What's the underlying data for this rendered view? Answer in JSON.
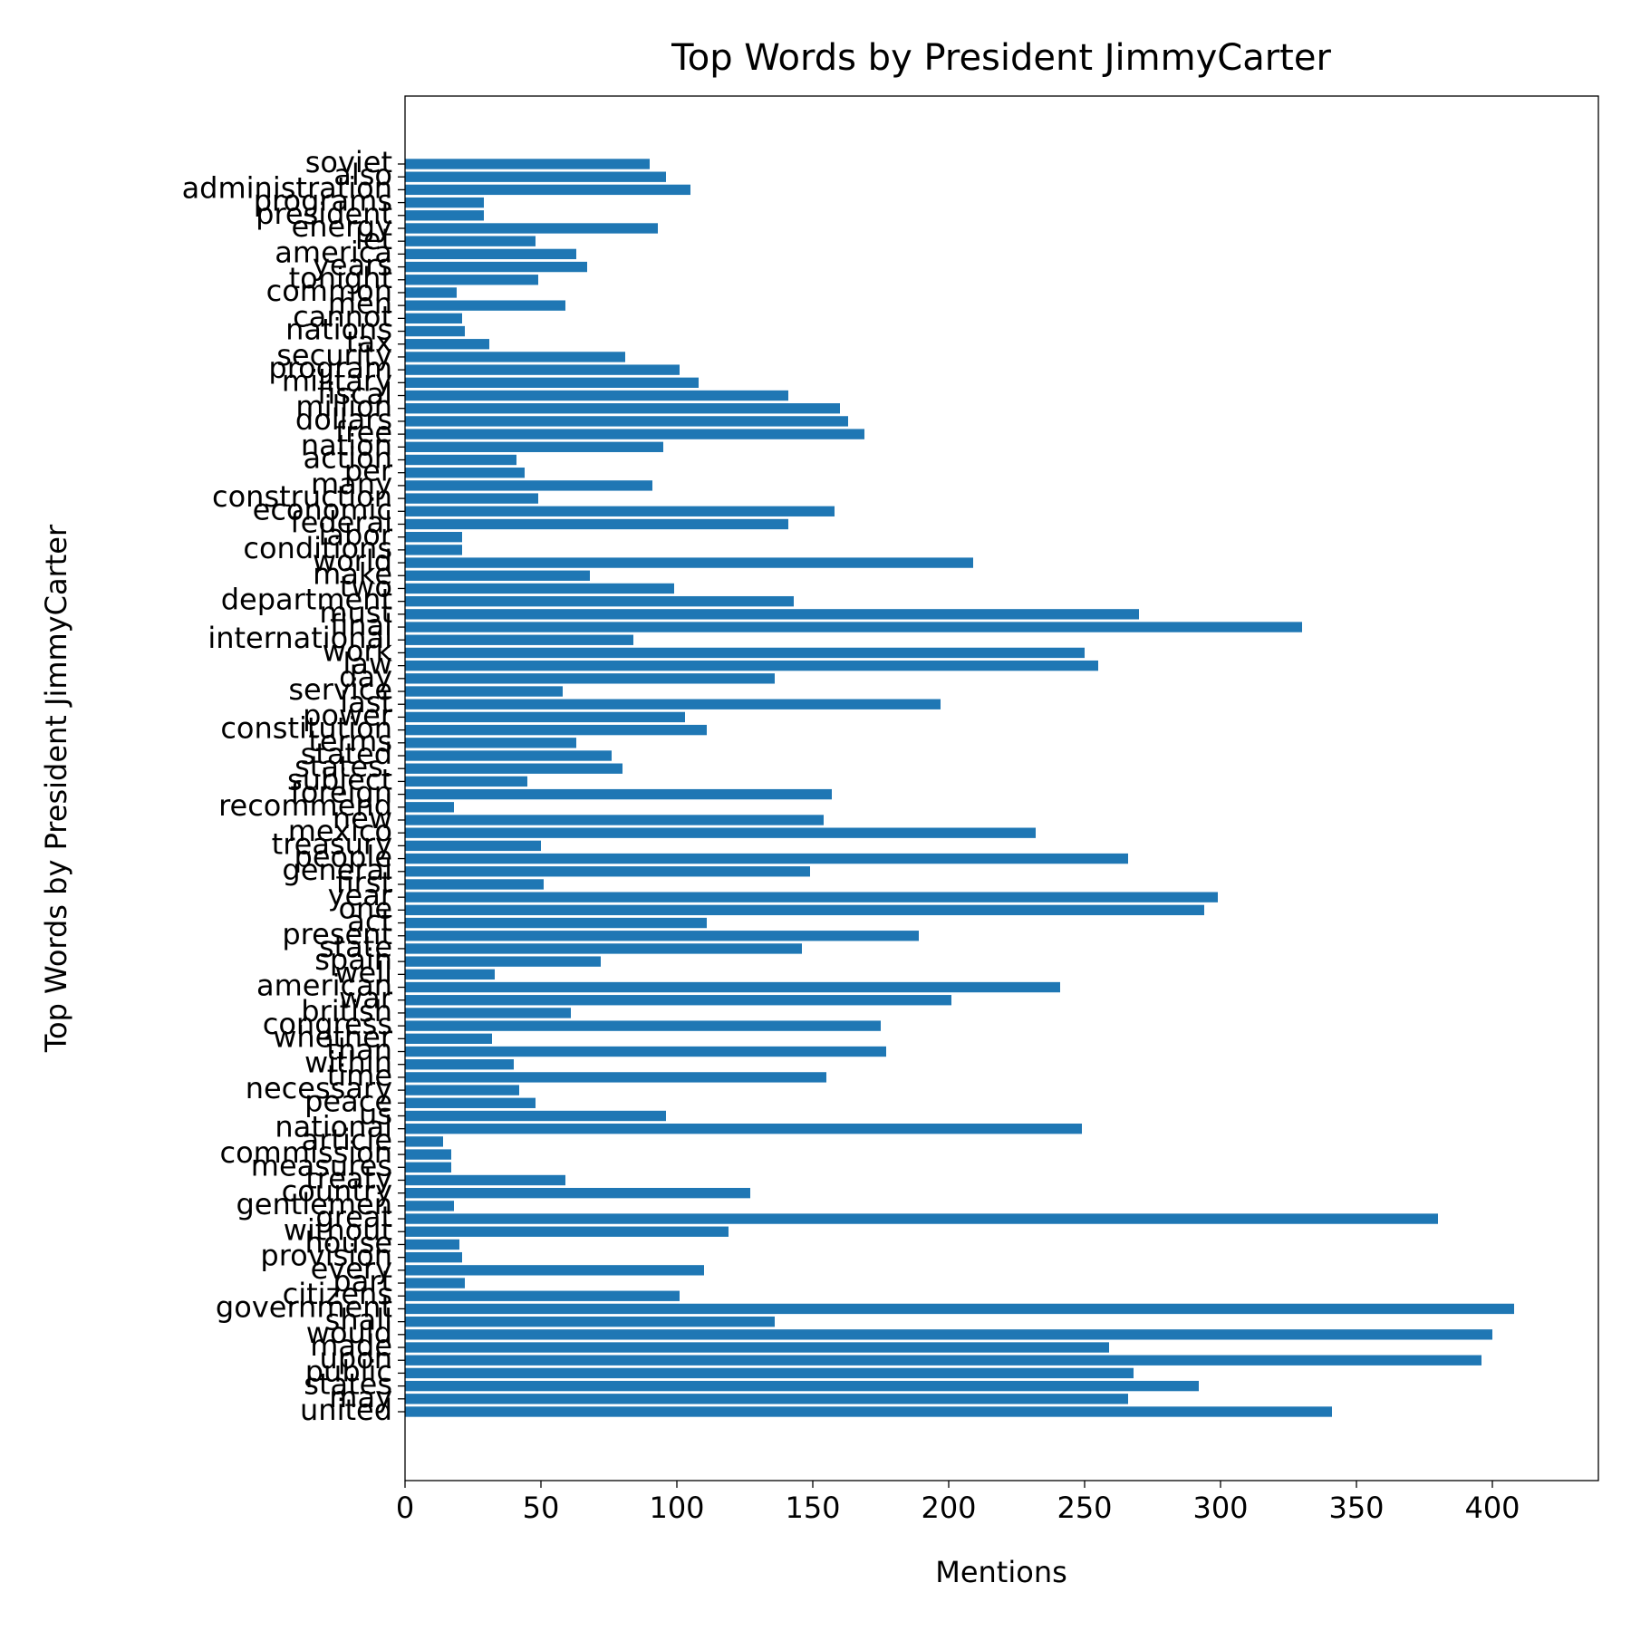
{
  "chart_data": {
    "type": "barh",
    "title": "Top Words by President JimmyCarter",
    "xlabel": "Mentions",
    "ylabel": "Top Words by President JimmyCarter",
    "color": "#1f77b4",
    "categories": [
      "united",
      "may",
      "states",
      "public",
      "upon",
      "made",
      "would",
      "shall",
      "government",
      "citizens",
      "part",
      "every",
      "provision",
      "house",
      "without",
      "great",
      "gentlemen",
      "country",
      "treaty",
      "measures",
      "commission",
      "article",
      "national",
      "us",
      "peace",
      "necessary",
      "time",
      "within",
      "than",
      "whether",
      "congress",
      "british",
      "war",
      "american",
      "well",
      "spain",
      "state",
      "present",
      "act",
      "one",
      "year",
      "first",
      "general",
      "people",
      "treasury",
      "mexico",
      "new",
      "recommend",
      "foreign",
      "subject",
      "states.",
      "stated",
      "terms",
      "constitution",
      "power",
      "last",
      "service",
      "day",
      "law",
      "work",
      "international",
      "final",
      "must",
      "department",
      "two",
      "make",
      "world",
      "conditions",
      "labor",
      "federal",
      "economic",
      "construction",
      "many",
      "per",
      "action",
      "nation",
      "free",
      "dollars",
      "million",
      "fiscal",
      "military",
      "program",
      "security",
      "tax",
      "nations",
      "cannot",
      "men",
      "common",
      "tonight",
      "years",
      "america",
      "let",
      "energy",
      "president",
      "programs",
      "administration",
      "also",
      "soviet"
    ],
    "values": [
      341,
      266,
      292,
      268,
      396,
      259,
      400,
      136,
      408,
      101,
      22,
      110,
      21,
      20,
      119,
      380,
      18,
      127,
      59,
      17,
      17,
      14,
      249,
      96,
      48,
      42,
      155,
      40,
      177,
      32,
      175,
      61,
      201,
      241,
      33,
      72,
      146,
      189,
      111,
      294,
      299,
      51,
      149,
      266,
      50,
      232,
      154,
      18,
      157,
      45,
      80,
      76,
      63,
      111,
      103,
      197,
      58,
      136,
      255,
      250,
      84,
      330,
      270,
      143,
      99,
      68,
      209,
      21,
      21,
      141,
      158,
      49,
      91,
      44,
      41,
      95,
      169,
      163,
      160,
      141,
      108,
      101,
      81,
      31,
      22,
      21,
      59,
      19,
      49,
      67,
      63,
      48,
      93,
      29,
      29,
      105,
      96,
      90
    ],
    "xlim": [
      0,
      439
    ],
    "xticks": [
      0,
      50,
      100,
      150,
      200,
      250,
      300,
      350,
      400
    ]
  }
}
